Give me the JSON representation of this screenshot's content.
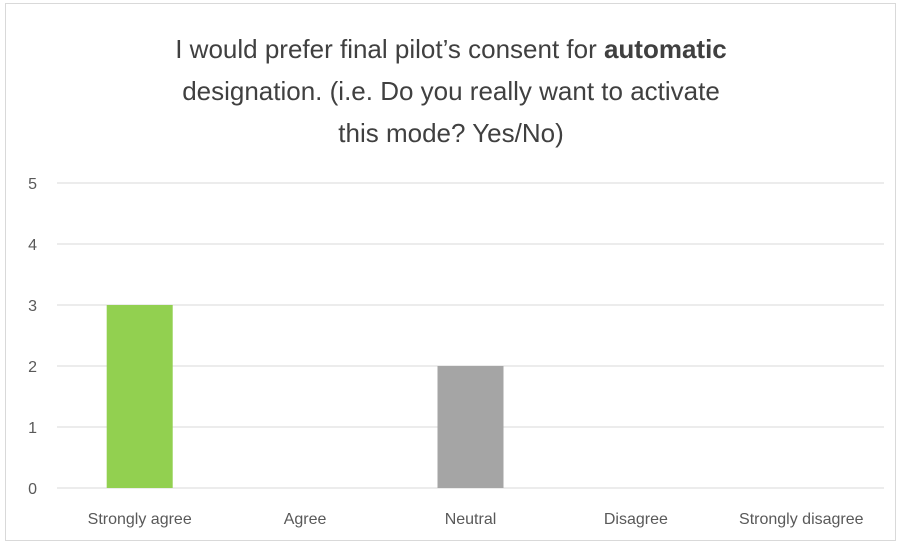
{
  "chart_data": {
    "type": "bar",
    "title": {
      "line1_pre": "I would prefer final pilot’s consent for ",
      "line1_bold": "automatic",
      "line2": "designation. (i.e. Do you really want to activate",
      "line3": "this mode? Yes/No)"
    },
    "categories": [
      "Strongly agree",
      "Agree",
      "Neutral",
      "Disagree",
      "Strongly disagree"
    ],
    "values": [
      3,
      0,
      2,
      0,
      0
    ],
    "colors": [
      "#92d050",
      "#a5a5a5",
      "#a5a5a5",
      "#a5a5a5",
      "#a5a5a5"
    ],
    "ylim": [
      0,
      5
    ],
    "yticks": [
      "0",
      "1",
      "2",
      "3",
      "4",
      "5"
    ],
    "grid": true,
    "gridColor": "#d9d9d9",
    "xlabel": "",
    "ylabel": ""
  }
}
